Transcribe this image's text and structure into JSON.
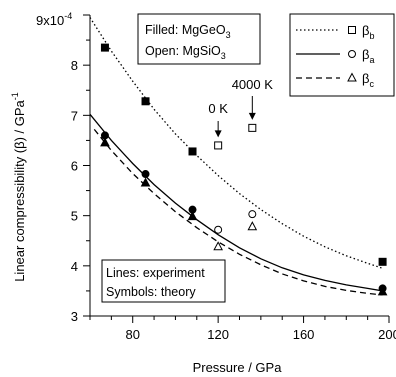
{
  "chart_data": {
    "type": "scatter",
    "xlabel": "Pressure / GPa",
    "ylabel": "Linear compressibility (β) / GPa",
    "ylabel_superscript": "-1",
    "y_multiplier_label": "9x10",
    "y_multiplier_exponent": "-4",
    "xlim": [
      60,
      200
    ],
    "ylim": [
      3,
      9
    ],
    "x_ticks": [
      80,
      120,
      160,
      200
    ],
    "y_ticks": [
      3,
      4,
      5,
      6,
      7,
      8
    ],
    "grid": false,
    "legend_position": "top-right",
    "legend": [
      {
        "label": "β",
        "subscript": "b",
        "line": "dotted",
        "marker": "square"
      },
      {
        "label": "β",
        "subscript": "a",
        "line": "solid",
        "marker": "circle"
      },
      {
        "label": "β",
        "subscript": "c",
        "line": "dashed",
        "marker": "triangle"
      }
    ],
    "annotation_top": {
      "line1_prefix": "Filled: MgGeO",
      "line1_sub": "3",
      "line2_prefix": "Open: MgSiO",
      "line2_sub": "3"
    },
    "annotation_bottom": {
      "line1": "Lines: experiment",
      "line2": "Symbols: theory"
    },
    "arrow_labels": [
      {
        "text": "0 K",
        "x": 120,
        "y": 6.4
      },
      {
        "text": "4000 K",
        "x": 136,
        "y": 6.75
      }
    ],
    "series": [
      {
        "name": "βb filled",
        "marker": "square",
        "filled": true,
        "points": [
          [
            67,
            8.35
          ],
          [
            86,
            7.28
          ],
          [
            108,
            6.28
          ],
          [
            197,
            4.08
          ]
        ]
      },
      {
        "name": "βa filled",
        "marker": "circle",
        "filled": true,
        "points": [
          [
            67,
            6.6
          ],
          [
            86,
            5.83
          ],
          [
            108,
            5.12
          ],
          [
            197,
            3.55
          ]
        ]
      },
      {
        "name": "βc filled",
        "marker": "triangle",
        "filled": true,
        "points": [
          [
            67,
            6.45
          ],
          [
            86,
            5.65
          ],
          [
            108,
            4.98
          ],
          [
            197,
            3.48
          ]
        ]
      },
      {
        "name": "βb open",
        "marker": "square",
        "filled": false,
        "points": [
          [
            120,
            6.4
          ],
          [
            136,
            6.75
          ]
        ]
      },
      {
        "name": "βa open",
        "marker": "circle",
        "filled": false,
        "points": [
          [
            120,
            4.72
          ],
          [
            136,
            5.03
          ]
        ]
      },
      {
        "name": "βc open",
        "marker": "triangle",
        "filled": false,
        "points": [
          [
            120,
            4.38
          ],
          [
            136,
            4.78
          ]
        ]
      }
    ],
    "curves": [
      {
        "name": "βb",
        "line": "dotted",
        "points": [
          [
            60,
            8.95
          ],
          [
            70,
            8.28
          ],
          [
            80,
            7.68
          ],
          [
            90,
            7.12
          ],
          [
            100,
            6.63
          ],
          [
            110,
            6.2
          ],
          [
            120,
            5.8
          ],
          [
            130,
            5.44
          ],
          [
            140,
            5.12
          ],
          [
            150,
            4.84
          ],
          [
            160,
            4.59
          ],
          [
            170,
            4.38
          ],
          [
            180,
            4.2
          ],
          [
            190,
            4.05
          ],
          [
            197,
            3.95
          ]
        ]
      },
      {
        "name": "βa",
        "line": "solid",
        "points": [
          [
            60,
            7.02
          ],
          [
            70,
            6.5
          ],
          [
            80,
            6.04
          ],
          [
            90,
            5.62
          ],
          [
            100,
            5.25
          ],
          [
            110,
            4.92
          ],
          [
            120,
            4.62
          ],
          [
            130,
            4.36
          ],
          [
            140,
            4.14
          ],
          [
            150,
            3.96
          ],
          [
            160,
            3.82
          ],
          [
            170,
            3.71
          ],
          [
            180,
            3.62
          ],
          [
            190,
            3.55
          ],
          [
            197,
            3.5
          ]
        ]
      },
      {
        "name": "βc",
        "line": "dashed",
        "points": [
          [
            62,
            6.72
          ],
          [
            70,
            6.3
          ],
          [
            80,
            5.84
          ],
          [
            90,
            5.44
          ],
          [
            100,
            5.08
          ],
          [
            110,
            4.76
          ],
          [
            120,
            4.48
          ],
          [
            130,
            4.23
          ],
          [
            140,
            4.02
          ],
          [
            150,
            3.84
          ],
          [
            160,
            3.7
          ],
          [
            170,
            3.59
          ],
          [
            180,
            3.51
          ],
          [
            190,
            3.45
          ],
          [
            197,
            3.42
          ]
        ]
      }
    ]
  }
}
